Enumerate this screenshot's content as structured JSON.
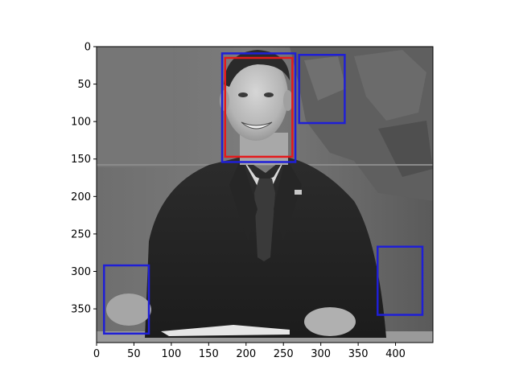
{
  "figure": {
    "image_extent": {
      "x": [
        0,
        450
      ],
      "y": [
        395,
        0
      ]
    },
    "x_ticks": [
      0,
      50,
      100,
      150,
      200,
      250,
      300,
      350,
      400
    ],
    "y_ticks": [
      0,
      50,
      100,
      150,
      200,
      250,
      300,
      350
    ],
    "red_box_color": "#e41a1c",
    "blue_box_color": "#1f1fd6",
    "red_boxes": [
      {
        "x0": 172,
        "y0": 15,
        "x1": 262,
        "y1": 147
      }
    ],
    "blue_boxes": [
      {
        "x0": 168,
        "y0": 9,
        "x1": 266,
        "y1": 154
      },
      {
        "x0": 271,
        "y0": 11,
        "x1": 332,
        "y1": 102
      },
      {
        "x0": 10,
        "y0": 292,
        "x1": 70,
        "y1": 383
      },
      {
        "x0": 376,
        "y0": 267,
        "x1": 436,
        "y1": 358
      }
    ]
  }
}
